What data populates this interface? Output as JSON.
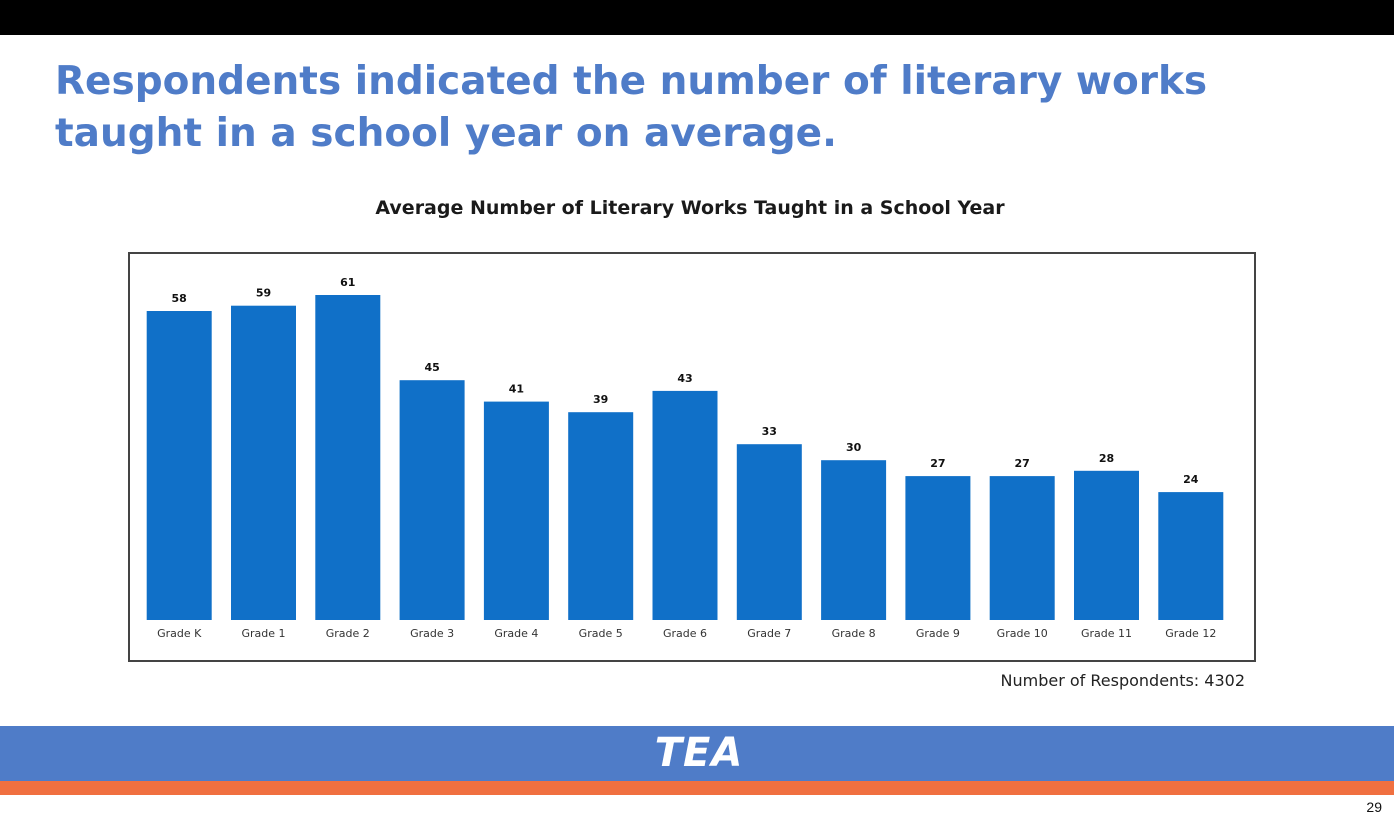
{
  "slide": {
    "title": "Respondents indicated the number of literary works taught in a school year on average.",
    "respondents_note": "Number of Respondents: 4302",
    "logo_text": "TEA",
    "page_number": "29"
  },
  "colors": {
    "title": "#4f7cc8",
    "bar": "#1070c8",
    "footer_band": "#4f7cc8",
    "footer_stripe": "#f07040"
  },
  "chart_data": {
    "type": "bar",
    "title": "Average Number of Literary Works Taught in a School Year",
    "xlabel": "",
    "ylabel": "",
    "categories": [
      "Grade K",
      "Grade 1",
      "Grade 2",
      "Grade 3",
      "Grade 4",
      "Grade 5",
      "Grade 6",
      "Grade 7",
      "Grade 8",
      "Grade 9",
      "Grade 10",
      "Grade 11",
      "Grade 12"
    ],
    "values": [
      58,
      59,
      61,
      45,
      41,
      39,
      43,
      33,
      30,
      27,
      27,
      28,
      24
    ],
    "data_labels": true,
    "grid": false,
    "ylim": [
      0,
      61
    ]
  }
}
